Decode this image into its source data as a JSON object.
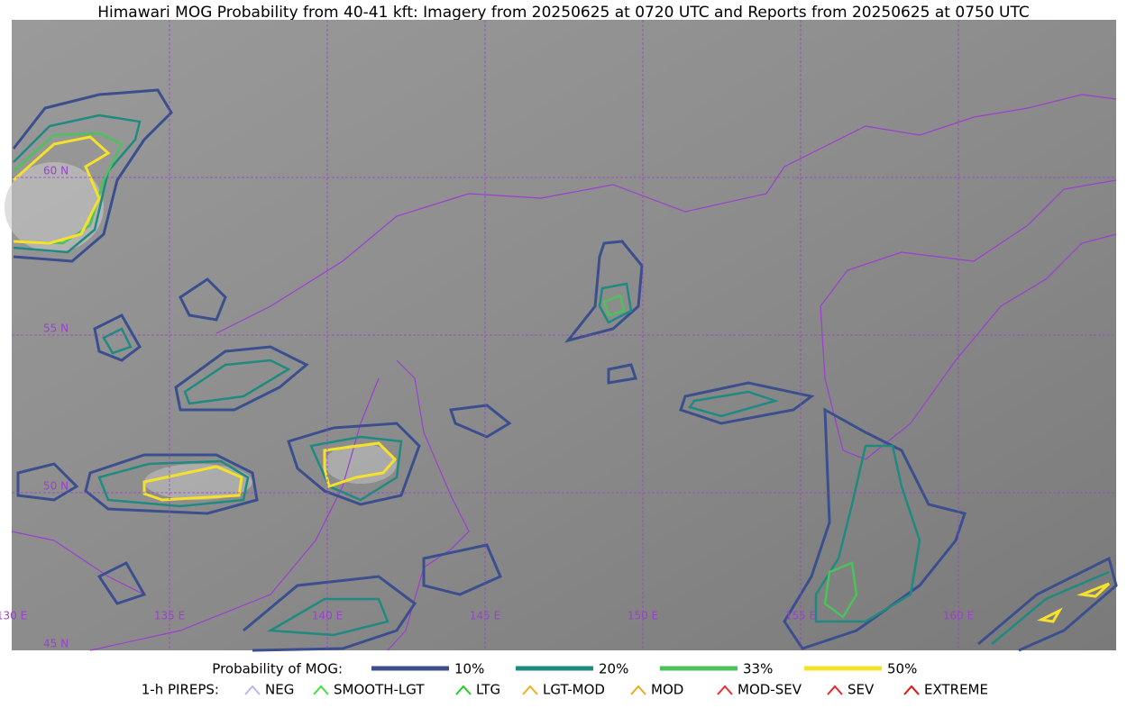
{
  "header": {
    "title": "Himawari MOG Probability from 40-41 kft: Imagery from 20250625 at 0720 UTC and Reports from 20250625 at 0750 UTC"
  },
  "map": {
    "lat_labels": [
      "60 N",
      "55 N",
      "50 N",
      "45 N"
    ],
    "lon_labels": [
      "130 E",
      "135 E",
      "140 E",
      "145 E",
      "150 E",
      "155 E",
      "160 E"
    ]
  },
  "legend": {
    "probability_title": "Probability of MOG:",
    "probability_items": [
      {
        "label": "10%",
        "color": "#3b4f8e"
      },
      {
        "label": "20%",
        "color": "#1f8a80"
      },
      {
        "label": "33%",
        "color": "#4cc25a"
      },
      {
        "label": "50%",
        "color": "#f5e12a"
      }
    ],
    "pireps_title": "1-h PIREPS:",
    "pireps_items": [
      {
        "label": "NEG",
        "color": "#b9b6f0"
      },
      {
        "label": "SMOOTH-LGT",
        "color": "#44dd44"
      },
      {
        "label": "LTG",
        "color": "#22cc22"
      },
      {
        "label": "LGT-MOD",
        "color": "#f0b020"
      },
      {
        "label": "MOD",
        "color": "#f0a820"
      },
      {
        "label": "MOD-SEV",
        "color": "#e83030"
      },
      {
        "label": "SEV",
        "color": "#e02828"
      },
      {
        "label": "EXTREME",
        "color": "#e01010"
      }
    ]
  }
}
